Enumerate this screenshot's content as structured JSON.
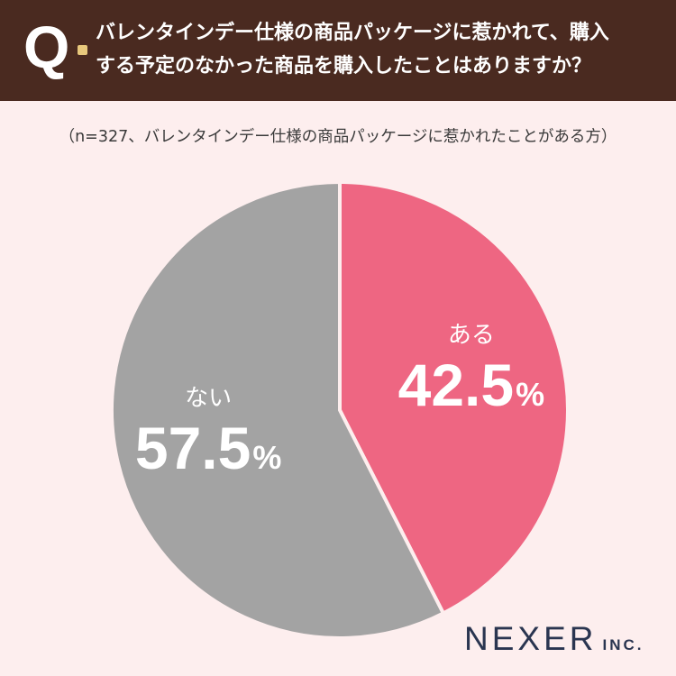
{
  "header": {
    "q_label": "Q",
    "question_lines": [
      "バレンタインデー仕様の商品パッケージに惹かれて、購入",
      "する予定のなかった商品を購入したことはありますか？"
    ]
  },
  "note": "（n=327、バレンタインデー仕様の商品パッケージに惹かれたことがある方）",
  "chart_data": {
    "type": "pie",
    "title": "",
    "slices": [
      {
        "label": "ある",
        "value": 42.5,
        "display": "42.5",
        "unit": "%",
        "color": "#ee6682"
      },
      {
        "label": "ない",
        "value": 57.5,
        "display": "57.5",
        "unit": "%",
        "color": "#a3a3a3"
      }
    ],
    "start": "12 o'clock",
    "direction": "clockwise",
    "label_color": "#ffffff",
    "separator_color": "#fdeeee"
  },
  "logo": {
    "main": "NEXER",
    "sub": "INC."
  }
}
